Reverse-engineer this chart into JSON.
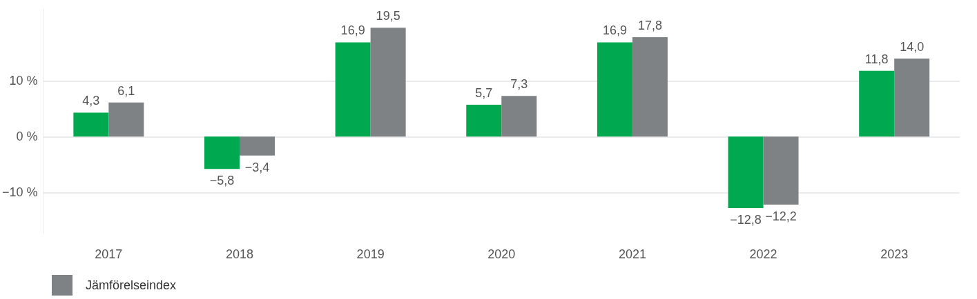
{
  "chart_data": {
    "type": "bar",
    "categories": [
      "2017",
      "2018",
      "2019",
      "2020",
      "2021",
      "2022",
      "2023"
    ],
    "series": [
      {
        "color": "#00a94f",
        "values": [
          4.3,
          -5.8,
          16.9,
          5.7,
          16.9,
          -12.8,
          11.8
        ],
        "value_labels": [
          "4,3",
          "−5,8",
          "16,9",
          "5,7",
          "16,9",
          "−12,8",
          "11,8"
        ]
      },
      {
        "name": "Jämförelseindex",
        "color": "#7e8285",
        "values": [
          6.1,
          -3.4,
          19.5,
          7.3,
          17.8,
          -12.2,
          14.0
        ],
        "value_labels": [
          "6,1",
          "−3,4",
          "19,5",
          "7,3",
          "17,8",
          "−12,2",
          "14,0"
        ]
      }
    ],
    "ylim": [
      -17.5,
      23
    ],
    "yticks": [
      {
        "value": -10,
        "label": "−10 %"
      },
      {
        "value": 0,
        "label": "0 %"
      },
      {
        "value": 10,
        "label": "10 %"
      }
    ],
    "grid": "y",
    "legend": "bottom left"
  }
}
